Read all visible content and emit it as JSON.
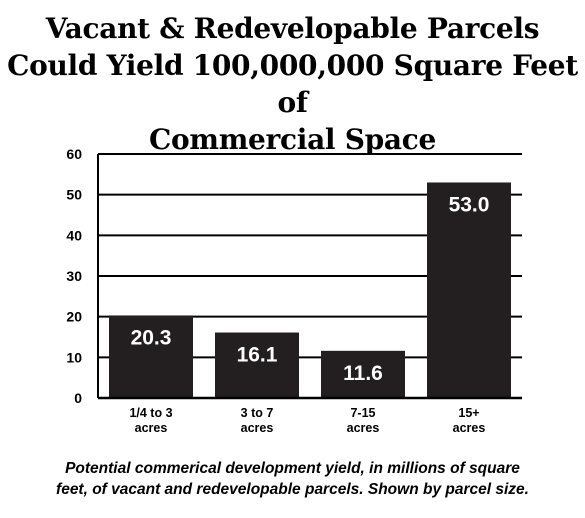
{
  "title_lines": [
    "Vacant & Redevelopable Parcels",
    "Could Yield 100,000,000 Square Feet of",
    "Commercial Space"
  ],
  "caption_lines": [
    "Potential commerical development yield, in millions of square",
    "feet, of vacant and redevelopable parcels. Shown by parcel size."
  ],
  "chart_data": {
    "type": "bar",
    "categories": [
      [
        "1/4 to 3",
        "acres"
      ],
      [
        "3 to 7",
        "acres"
      ],
      [
        "7-15",
        "acres"
      ],
      [
        "15+",
        "acres"
      ]
    ],
    "values": [
      20.3,
      16.1,
      11.6,
      53.0
    ],
    "data_labels": [
      "20.3",
      "16.1",
      "11.6",
      "53.0"
    ],
    "ylim": [
      0,
      60
    ],
    "yticks": [
      0,
      10,
      20,
      30,
      40,
      50,
      60
    ],
    "grid": true,
    "bar_color": "#231f20",
    "label_color": "#ffffff"
  }
}
